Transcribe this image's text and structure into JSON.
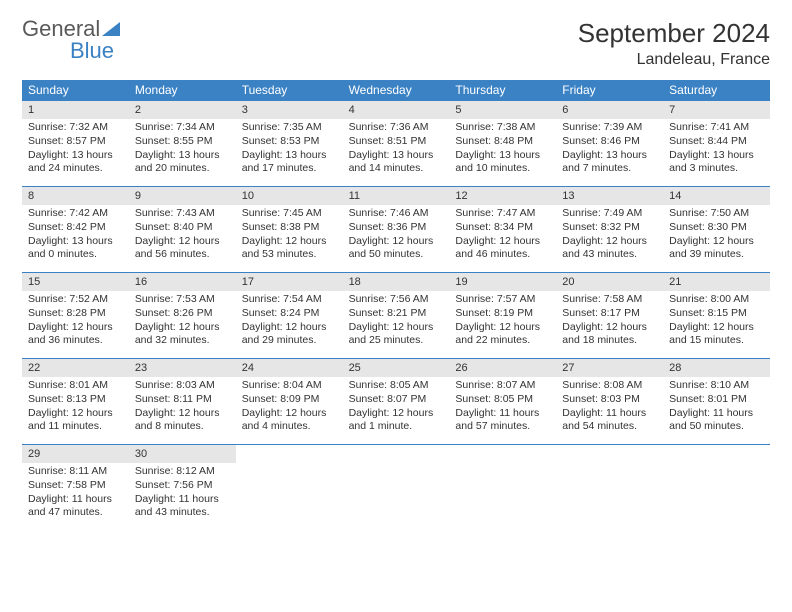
{
  "logo": {
    "text1": "General",
    "text2": "Blue"
  },
  "title": "September 2024",
  "location": "Landeleau, France",
  "colors": {
    "header_bg": "#3b82c4",
    "header_text": "#ffffff",
    "daynum_bg": "#e6e6e6",
    "cell_border": "#3b82c4",
    "body_text": "#333333"
  },
  "weekdays": [
    "Sunday",
    "Monday",
    "Tuesday",
    "Wednesday",
    "Thursday",
    "Friday",
    "Saturday"
  ],
  "days": [
    {
      "n": "1",
      "sr": "7:32 AM",
      "ss": "8:57 PM",
      "dl": "13 hours and 24 minutes."
    },
    {
      "n": "2",
      "sr": "7:34 AM",
      "ss": "8:55 PM",
      "dl": "13 hours and 20 minutes."
    },
    {
      "n": "3",
      "sr": "7:35 AM",
      "ss": "8:53 PM",
      "dl": "13 hours and 17 minutes."
    },
    {
      "n": "4",
      "sr": "7:36 AM",
      "ss": "8:51 PM",
      "dl": "13 hours and 14 minutes."
    },
    {
      "n": "5",
      "sr": "7:38 AM",
      "ss": "8:48 PM",
      "dl": "13 hours and 10 minutes."
    },
    {
      "n": "6",
      "sr": "7:39 AM",
      "ss": "8:46 PM",
      "dl": "13 hours and 7 minutes."
    },
    {
      "n": "7",
      "sr": "7:41 AM",
      "ss": "8:44 PM",
      "dl": "13 hours and 3 minutes."
    },
    {
      "n": "8",
      "sr": "7:42 AM",
      "ss": "8:42 PM",
      "dl": "13 hours and 0 minutes."
    },
    {
      "n": "9",
      "sr": "7:43 AM",
      "ss": "8:40 PM",
      "dl": "12 hours and 56 minutes."
    },
    {
      "n": "10",
      "sr": "7:45 AM",
      "ss": "8:38 PM",
      "dl": "12 hours and 53 minutes."
    },
    {
      "n": "11",
      "sr": "7:46 AM",
      "ss": "8:36 PM",
      "dl": "12 hours and 50 minutes."
    },
    {
      "n": "12",
      "sr": "7:47 AM",
      "ss": "8:34 PM",
      "dl": "12 hours and 46 minutes."
    },
    {
      "n": "13",
      "sr": "7:49 AM",
      "ss": "8:32 PM",
      "dl": "12 hours and 43 minutes."
    },
    {
      "n": "14",
      "sr": "7:50 AM",
      "ss": "8:30 PM",
      "dl": "12 hours and 39 minutes."
    },
    {
      "n": "15",
      "sr": "7:52 AM",
      "ss": "8:28 PM",
      "dl": "12 hours and 36 minutes."
    },
    {
      "n": "16",
      "sr": "7:53 AM",
      "ss": "8:26 PM",
      "dl": "12 hours and 32 minutes."
    },
    {
      "n": "17",
      "sr": "7:54 AM",
      "ss": "8:24 PM",
      "dl": "12 hours and 29 minutes."
    },
    {
      "n": "18",
      "sr": "7:56 AM",
      "ss": "8:21 PM",
      "dl": "12 hours and 25 minutes."
    },
    {
      "n": "19",
      "sr": "7:57 AM",
      "ss": "8:19 PM",
      "dl": "12 hours and 22 minutes."
    },
    {
      "n": "20",
      "sr": "7:58 AM",
      "ss": "8:17 PM",
      "dl": "12 hours and 18 minutes."
    },
    {
      "n": "21",
      "sr": "8:00 AM",
      "ss": "8:15 PM",
      "dl": "12 hours and 15 minutes."
    },
    {
      "n": "22",
      "sr": "8:01 AM",
      "ss": "8:13 PM",
      "dl": "12 hours and 11 minutes."
    },
    {
      "n": "23",
      "sr": "8:03 AM",
      "ss": "8:11 PM",
      "dl": "12 hours and 8 minutes."
    },
    {
      "n": "24",
      "sr": "8:04 AM",
      "ss": "8:09 PM",
      "dl": "12 hours and 4 minutes."
    },
    {
      "n": "25",
      "sr": "8:05 AM",
      "ss": "8:07 PM",
      "dl": "12 hours and 1 minute."
    },
    {
      "n": "26",
      "sr": "8:07 AM",
      "ss": "8:05 PM",
      "dl": "11 hours and 57 minutes."
    },
    {
      "n": "27",
      "sr": "8:08 AM",
      "ss": "8:03 PM",
      "dl": "11 hours and 54 minutes."
    },
    {
      "n": "28",
      "sr": "8:10 AM",
      "ss": "8:01 PM",
      "dl": "11 hours and 50 minutes."
    },
    {
      "n": "29",
      "sr": "8:11 AM",
      "ss": "7:58 PM",
      "dl": "11 hours and 47 minutes."
    },
    {
      "n": "30",
      "sr": "8:12 AM",
      "ss": "7:56 PM",
      "dl": "11 hours and 43 minutes."
    }
  ],
  "labels": {
    "sunrise": "Sunrise:",
    "sunset": "Sunset:",
    "daylight": "Daylight:"
  }
}
